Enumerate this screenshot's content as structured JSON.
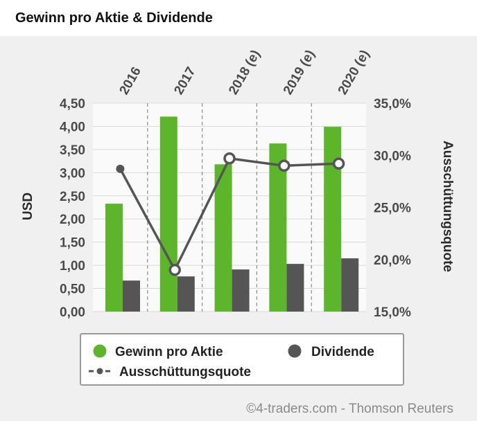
{
  "chart_data": {
    "type": "bar",
    "title": "Gewinn pro Aktie & Dividende",
    "categories": [
      "2016",
      "2017",
      "2018 (e)",
      "2019 (e)",
      "2020 (e)"
    ],
    "series": [
      {
        "name": "Gewinn pro Aktie",
        "kind": "bar",
        "axis": "left",
        "color": "#5db52b",
        "values": [
          2.33,
          4.21,
          3.18,
          3.63,
          3.99
        ]
      },
      {
        "name": "Dividende",
        "kind": "bar",
        "axis": "left",
        "color": "#555555",
        "values": [
          0.67,
          0.76,
          0.91,
          1.03,
          1.15
        ]
      },
      {
        "name": "Ausschüttungsquote",
        "kind": "line",
        "axis": "right",
        "color": "#555555",
        "values": [
          28.7,
          19.0,
          29.7,
          29.0,
          29.2
        ]
      }
    ],
    "ylabel": "USD",
    "ylim": [
      0,
      4.5
    ],
    "yticks": [
      "0,00",
      "0,50",
      "1,00",
      "1,50",
      "2,00",
      "2,50",
      "3,00",
      "3,50",
      "4,00",
      "4,50"
    ],
    "y2label": "Ausschüttungsquote",
    "y2lim": [
      15,
      35
    ],
    "y2ticks": [
      "15,0%",
      "20,0%",
      "25,0%",
      "30,0%",
      "35,0%"
    ],
    "legend": {
      "position": "bottom",
      "items": [
        "Gewinn pro Aktie",
        "Dividende",
        "Ausschüttungsquote"
      ]
    },
    "credit": "©4-traders.com - Thomson Reuters"
  },
  "colors": {
    "green": "#5db52b",
    "dark": "#555555",
    "line": "#555555",
    "grid": "#d9d9d9",
    "plot_bg": "#fafafa",
    "outer_bg": "#f0f0f0"
  }
}
